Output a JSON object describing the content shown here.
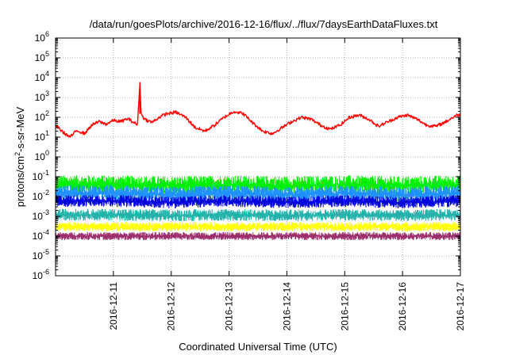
{
  "chart_data": {
    "type": "line",
    "title": "/data/run/goesPlots/archive/2016-12-16/flux/../flux/7daysEarthDataFluxes.txt",
    "xlabel": "Coordinated Universal Time (UTC)",
    "ylabel": {
      "pre": "protons/cm",
      "sup": "2",
      "post": "-s-sr-MeV"
    },
    "yscale": "log",
    "ylim": [
      1e-06,
      1000000.0
    ],
    "xlim": [
      "2016-12-10T00:00",
      "2016-12-17T00:00"
    ],
    "grid": true,
    "x_ticks": [
      "2016-12-11",
      "2016-12-12",
      "2016-12-13",
      "2016-12-14",
      "2016-12-15",
      "2016-12-16",
      "2016-12-17"
    ],
    "y_ticks": [
      {
        "value": 1e-06,
        "base": "10",
        "exp": "-6"
      },
      {
        "value": 1e-05,
        "base": "10",
        "exp": "-5"
      },
      {
        "value": 0.0001,
        "base": "10",
        "exp": "-4"
      },
      {
        "value": 0.001,
        "base": "10",
        "exp": "-3"
      },
      {
        "value": 0.01,
        "base": "10",
        "exp": "-2"
      },
      {
        "value": 0.1,
        "base": "10",
        "exp": "-1"
      },
      {
        "value": 1,
        "base": "10",
        "exp": "0"
      },
      {
        "value": 10.0,
        "base": "10",
        "exp": "1"
      },
      {
        "value": 100.0,
        "base": "10",
        "exp": "2"
      },
      {
        "value": 1000.0,
        "base": "10",
        "exp": "3"
      },
      {
        "value": 10000.0,
        "base": "10",
        "exp": "4"
      },
      {
        "value": 100000.0,
        "base": "10",
        "exp": "5"
      },
      {
        "value": 1000000.0,
        "base": "10",
        "exp": "6"
      }
    ],
    "series": [
      {
        "color": "#ff0000",
        "style": "line",
        "points": [
          [
            "2016-12-10T00:00",
            40
          ],
          [
            "2016-12-10T03:00",
            18
          ],
          [
            "2016-12-10T06:00",
            10
          ],
          [
            "2016-12-10T09:00",
            22
          ],
          [
            "2016-12-10T12:00",
            15
          ],
          [
            "2016-12-10T15:00",
            40
          ],
          [
            "2016-12-10T18:00",
            60
          ],
          [
            "2016-12-10T21:00",
            45
          ],
          [
            "2016-12-11T00:00",
            70
          ],
          [
            "2016-12-11T03:00",
            60
          ],
          [
            "2016-12-11T06:00",
            85
          ],
          [
            "2016-12-11T09:00",
            50
          ],
          [
            "2016-12-11T10:00",
            40
          ],
          [
            "2016-12-11T11:00",
            6000
          ],
          [
            "2016-12-11T11:30",
            150
          ],
          [
            "2016-12-11T13:00",
            80
          ],
          [
            "2016-12-11T16:00",
            55
          ],
          [
            "2016-12-11T19:00",
            100
          ],
          [
            "2016-12-11T22:00",
            150
          ],
          [
            "2016-12-12T02:00",
            180
          ],
          [
            "2016-12-12T06:00",
            100
          ],
          [
            "2016-12-12T10:00",
            30
          ],
          [
            "2016-12-12T14:00",
            20
          ],
          [
            "2016-12-12T18:00",
            40
          ],
          [
            "2016-12-12T22:00",
            100
          ],
          [
            "2016-12-13T02:00",
            200
          ],
          [
            "2016-12-13T06:00",
            150
          ],
          [
            "2016-12-13T10:00",
            50
          ],
          [
            "2016-12-13T14:00",
            20
          ],
          [
            "2016-12-13T18:00",
            15
          ],
          [
            "2016-12-13T22:00",
            30
          ],
          [
            "2016-12-14T02:00",
            60
          ],
          [
            "2016-12-14T06:00",
            100
          ],
          [
            "2016-12-14T10:00",
            80
          ],
          [
            "2016-12-14T14:00",
            40
          ],
          [
            "2016-12-14T18:00",
            25
          ],
          [
            "2016-12-14T22:00",
            40
          ],
          [
            "2016-12-15T02:00",
            100
          ],
          [
            "2016-12-15T06:00",
            130
          ],
          [
            "2016-12-15T10:00",
            80
          ],
          [
            "2016-12-15T14:00",
            35
          ],
          [
            "2016-12-15T18:00",
            60
          ],
          [
            "2016-12-15T22:00",
            100
          ],
          [
            "2016-12-16T02:00",
            130
          ],
          [
            "2016-12-16T06:00",
            80
          ],
          [
            "2016-12-16T10:00",
            40
          ],
          [
            "2016-12-16T14:00",
            35
          ],
          [
            "2016-12-16T18:00",
            60
          ],
          [
            "2016-12-16T22:00",
            120
          ],
          [
            "2016-12-17T00:00",
            140
          ]
        ]
      },
      {
        "color": "#00ee00",
        "style": "band",
        "noise": 3,
        "points": [
          [
            "2016-12-10T00:00",
            0.04
          ],
          [
            "2016-12-11T00:00",
            0.04
          ],
          [
            "2016-12-12T00:00",
            0.035
          ],
          [
            "2016-12-13T00:00",
            0.04
          ],
          [
            "2016-12-14T00:00",
            0.035
          ],
          [
            "2016-12-15T00:00",
            0.04
          ],
          [
            "2016-12-16T00:00",
            0.035
          ],
          [
            "2016-12-17T00:00",
            0.04
          ]
        ]
      },
      {
        "color": "#1e90ff",
        "style": "band",
        "noise": 2.5,
        "points": [
          [
            "2016-12-10T00:00",
            0.015
          ],
          [
            "2016-12-11T00:00",
            0.015
          ],
          [
            "2016-12-12T00:00",
            0.012
          ],
          [
            "2016-12-13T00:00",
            0.015
          ],
          [
            "2016-12-14T00:00",
            0.012
          ],
          [
            "2016-12-15T00:00",
            0.015
          ],
          [
            "2016-12-16T00:00",
            0.012
          ],
          [
            "2016-12-17T00:00",
            0.015
          ]
        ]
      },
      {
        "color": "#0000dd",
        "style": "band",
        "noise": 2,
        "points": [
          [
            "2016-12-10T00:00",
            0.006
          ],
          [
            "2016-12-11T00:00",
            0.006
          ],
          [
            "2016-12-12T00:00",
            0.005
          ],
          [
            "2016-12-13T00:00",
            0.006
          ],
          [
            "2016-12-14T00:00",
            0.005
          ],
          [
            "2016-12-15T00:00",
            0.006
          ],
          [
            "2016-12-16T00:00",
            0.005
          ],
          [
            "2016-12-17T00:00",
            0.006
          ]
        ]
      },
      {
        "color": "#20b2aa",
        "style": "band",
        "noise": 2,
        "points": [
          [
            "2016-12-10T00:00",
            0.0012
          ],
          [
            "2016-12-11T00:00",
            0.0012
          ],
          [
            "2016-12-12T00:00",
            0.0011
          ],
          [
            "2016-12-13T00:00",
            0.0012
          ],
          [
            "2016-12-14T00:00",
            0.0011
          ],
          [
            "2016-12-15T00:00",
            0.0012
          ],
          [
            "2016-12-16T00:00",
            0.0011
          ],
          [
            "2016-12-17T00:00",
            0.0012
          ]
        ]
      },
      {
        "color": "#ffff00",
        "style": "band",
        "noise": 1.7,
        "points": [
          [
            "2016-12-10T00:00",
            0.0003
          ],
          [
            "2016-12-11T00:00",
            0.0003
          ],
          [
            "2016-12-12T00:00",
            0.0003
          ],
          [
            "2016-12-13T00:00",
            0.0003
          ],
          [
            "2016-12-14T00:00",
            0.0003
          ],
          [
            "2016-12-15T00:00",
            0.0003
          ],
          [
            "2016-12-16T00:00",
            0.0003
          ],
          [
            "2016-12-17T00:00",
            0.0003
          ]
        ]
      },
      {
        "color": "#9b2d6a",
        "style": "band",
        "noise": 1.6,
        "points": [
          [
            "2016-12-10T00:00",
            0.0001
          ],
          [
            "2016-12-11T00:00",
            0.0001
          ],
          [
            "2016-12-12T00:00",
            0.0001
          ],
          [
            "2016-12-13T00:00",
            0.0001
          ],
          [
            "2016-12-14T00:00",
            0.0001
          ],
          [
            "2016-12-15T00:00",
            0.0001
          ],
          [
            "2016-12-16T00:00",
            0.0001
          ],
          [
            "2016-12-17T00:00",
            0.0001
          ]
        ]
      }
    ]
  }
}
